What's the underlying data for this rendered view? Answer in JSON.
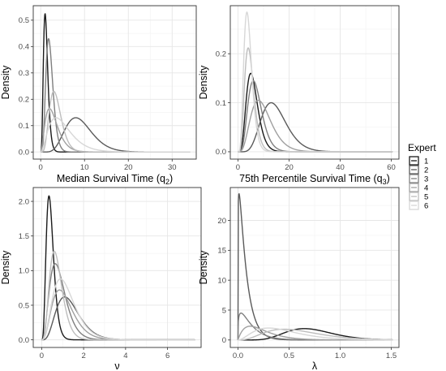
{
  "legend": {
    "title": "Expert",
    "items": [
      {
        "label": "1",
        "color": "#1a1a1a"
      },
      {
        "label": "2",
        "color": "#5a5a5a"
      },
      {
        "label": "3",
        "color": "#7f7f7f"
      },
      {
        "label": "4",
        "color": "#a0a0a0"
      },
      {
        "label": "5",
        "color": "#bdbdbd"
      },
      {
        "label": "6",
        "color": "#d7d7d7"
      }
    ]
  },
  "chart_data": [
    {
      "type": "line",
      "xlabel": "Median Survival Time (q",
      "xlabel_sub": "2",
      "xlabel_end": ")",
      "ylabel": "Density",
      "xlim": [
        -1.7,
        35.5
      ],
      "ylim": [
        -0.027,
        0.555
      ],
      "xticks": [
        0,
        10,
        20,
        30
      ],
      "xtick_labels": [
        "0",
        "10",
        "20",
        "30"
      ],
      "yticks": [
        0.0,
        0.1,
        0.2,
        0.3,
        0.4,
        0.5
      ],
      "ytick_labels": [
        "0.0",
        "0.1",
        "0.2",
        "0.3",
        "0.4",
        "0.5"
      ],
      "grid": true,
      "series": [
        {
          "name": "1",
          "dist": "gamma",
          "mode": 1.0,
          "peak": 0.525,
          "shape": 5
        },
        {
          "name": "2",
          "dist": "gamma",
          "mode": 8.0,
          "peak": 0.13,
          "shape": 8
        },
        {
          "name": "3",
          "dist": "gamma",
          "mode": 1.8,
          "peak": 0.43,
          "shape": 6
        },
        {
          "name": "4",
          "dist": "gamma",
          "mode": 2.0,
          "peak": 0.165,
          "shape": 3
        },
        {
          "name": "5",
          "dist": "gamma",
          "mode": 3.0,
          "peak": 0.23,
          "shape": 6
        },
        {
          "name": "6",
          "dist": "gamma",
          "mode": 3.5,
          "peak": 0.13,
          "shape": 3
        }
      ]
    },
    {
      "type": "line",
      "xlabel": "75th Percentile Survival Time (q",
      "xlabel_sub": "3",
      "xlabel_end": ")",
      "ylabel": "Density",
      "xlim": [
        -3,
        63
      ],
      "ylim": [
        -0.015,
        0.298
      ],
      "xticks": [
        0,
        20,
        40,
        60
      ],
      "xtick_labels": [
        "0",
        "20",
        "40",
        "60"
      ],
      "yticks": [
        0.0,
        0.1,
        0.2
      ],
      "ytick_labels": [
        "0.0",
        "0.1",
        "0.2"
      ],
      "grid": true,
      "series": [
        {
          "name": "1",
          "dist": "gamma",
          "mode": 5.0,
          "peak": 0.16,
          "shape": 6
        },
        {
          "name": "2",
          "dist": "gamma",
          "mode": 13.0,
          "peak": 0.1,
          "shape": 8
        },
        {
          "name": "3",
          "dist": "gamma",
          "mode": 6.0,
          "peak": 0.145,
          "shape": 6
        },
        {
          "name": "4",
          "dist": "gamma",
          "mode": 8.0,
          "peak": 0.105,
          "shape": 5
        },
        {
          "name": "5",
          "dist": "gamma",
          "mode": 4.0,
          "peak": 0.212,
          "shape": 6
        },
        {
          "name": "6",
          "dist": "gamma",
          "mode": 3.5,
          "peak": 0.285,
          "shape": 6
        }
      ]
    },
    {
      "type": "line",
      "xlabel": "ν",
      "ylabel": "Density",
      "xlim": [
        -0.4,
        7.6
      ],
      "ylim": [
        -0.11,
        2.2
      ],
      "xticks": [
        0,
        2,
        4,
        6
      ],
      "xtick_labels": [
        "0",
        "2",
        "4",
        "6"
      ],
      "yticks": [
        0.0,
        0.5,
        1.0,
        1.5,
        2.0
      ],
      "ytick_labels": [
        "0.0",
        "0.5",
        "1.0",
        "1.5",
        "2.0"
      ],
      "grid": true,
      "series": [
        {
          "name": "1",
          "dist": "gamma",
          "mode": 0.35,
          "peak": 2.08,
          "shape": 5
        },
        {
          "name": "2",
          "dist": "gamma",
          "mode": 1.1,
          "peak": 0.62,
          "shape": 5
        },
        {
          "name": "3",
          "dist": "gamma",
          "mode": 0.65,
          "peak": 1.1,
          "shape": 4
        },
        {
          "name": "4",
          "dist": "gamma",
          "mode": 0.85,
          "peak": 0.72,
          "shape": 4
        },
        {
          "name": "5",
          "dist": "gamma",
          "mode": 0.6,
          "peak": 1.28,
          "shape": 5
        },
        {
          "name": "6",
          "dist": "gamma",
          "mode": 0.9,
          "peak": 0.88,
          "shape": 4
        }
      ]
    },
    {
      "type": "line",
      "xlabel": "λ",
      "ylabel": "Density",
      "xlim": [
        -0.075,
        1.575
      ],
      "ylim": [
        -1.25,
        25.5
      ],
      "xticks": [
        0.0,
        0.5,
        1.0,
        1.5
      ],
      "xtick_labels": [
        "0.0",
        "0.5",
        "1.0",
        "1.5"
      ],
      "yticks": [
        0,
        5,
        10,
        15,
        20
      ],
      "ytick_labels": [
        "0",
        "5",
        "10",
        "15",
        "20"
      ],
      "grid": true,
      "series": [
        {
          "name": "1",
          "dist": "gamma",
          "mode": 0.65,
          "peak": 1.9,
          "shape": 9
        },
        {
          "name": "2",
          "dist": "gamma",
          "mode": 0.01,
          "peak": 24.5,
          "shape": 1.15
        },
        {
          "name": "3",
          "dist": "gamma",
          "mode": 0.03,
          "peak": 4.5,
          "shape": 1.3
        },
        {
          "name": "4",
          "dist": "gamma",
          "mode": 0.12,
          "peak": 2.3,
          "shape": 2
        },
        {
          "name": "5",
          "dist": "gamma",
          "mode": 0.45,
          "peak": 1.8,
          "shape": 4
        },
        {
          "name": "6",
          "dist": "gamma",
          "mode": 0.3,
          "peak": 2.0,
          "shape": 3
        }
      ]
    }
  ]
}
